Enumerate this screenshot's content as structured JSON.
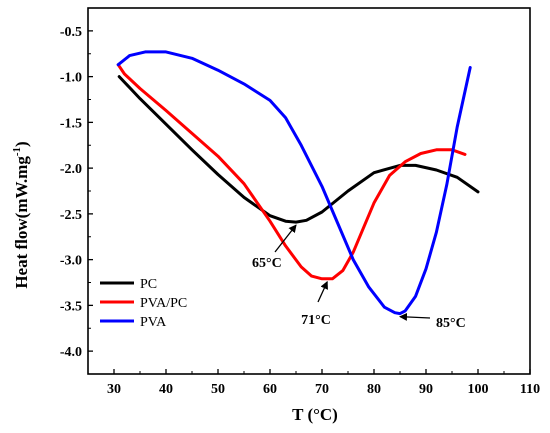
{
  "chart_data": {
    "type": "line",
    "title": "",
    "xlabel": "T  (°C)",
    "ylabel_main": "Heat flow(mW.mg",
    "ylabel_sup": "-1",
    "ylabel_close": ")",
    "xlim": [
      25,
      110
    ],
    "ylim": [
      -4.25,
      -0.25
    ],
    "xticks": [
      30,
      40,
      50,
      60,
      70,
      80,
      90,
      100,
      110
    ],
    "yticks": [
      -0.5,
      -1.0,
      -1.5,
      -2.0,
      -2.5,
      -3.0,
      -3.5,
      -4.0
    ],
    "grid": false,
    "legend_position": "bottom-left",
    "series": [
      {
        "name": "PC",
        "color": "#000000",
        "points": [
          [
            31,
            -1.0
          ],
          [
            35,
            -1.24
          ],
          [
            40,
            -1.52
          ],
          [
            45,
            -1.8
          ],
          [
            50,
            -2.07
          ],
          [
            55,
            -2.32
          ],
          [
            60,
            -2.52
          ],
          [
            63,
            -2.58
          ],
          [
            65,
            -2.59
          ],
          [
            67,
            -2.57
          ],
          [
            70,
            -2.48
          ],
          [
            75,
            -2.25
          ],
          [
            80,
            -2.05
          ],
          [
            85,
            -1.97
          ],
          [
            88,
            -1.97
          ],
          [
            92,
            -2.02
          ],
          [
            96,
            -2.1
          ],
          [
            100,
            -2.26
          ]
        ]
      },
      {
        "name": "PVA/PC",
        "color": "#ff0000",
        "points": [
          [
            30.8,
            -0.87
          ],
          [
            32,
            -0.97
          ],
          [
            35,
            -1.13
          ],
          [
            40,
            -1.37
          ],
          [
            45,
            -1.62
          ],
          [
            50,
            -1.87
          ],
          [
            55,
            -2.17
          ],
          [
            60,
            -2.58
          ],
          [
            63,
            -2.85
          ],
          [
            66,
            -3.08
          ],
          [
            68,
            -3.18
          ],
          [
            70,
            -3.21
          ],
          [
            72,
            -3.21
          ],
          [
            74,
            -3.12
          ],
          [
            76,
            -2.92
          ],
          [
            78,
            -2.65
          ],
          [
            80,
            -2.38
          ],
          [
            83,
            -2.08
          ],
          [
            86,
            -1.93
          ],
          [
            89,
            -1.84
          ],
          [
            92,
            -1.8
          ],
          [
            95,
            -1.8
          ],
          [
            97.5,
            -1.85
          ]
        ]
      },
      {
        "name": "PVA",
        "color": "#0000ff",
        "points": [
          [
            30.8,
            -0.87
          ],
          [
            33,
            -0.77
          ],
          [
            36,
            -0.73
          ],
          [
            40,
            -0.73
          ],
          [
            45,
            -0.8
          ],
          [
            50,
            -0.93
          ],
          [
            55,
            -1.08
          ],
          [
            60,
            -1.26
          ],
          [
            63,
            -1.45
          ],
          [
            66,
            -1.75
          ],
          [
            70,
            -2.2
          ],
          [
            73,
            -2.6
          ],
          [
            76,
            -3.0
          ],
          [
            79,
            -3.3
          ],
          [
            82,
            -3.52
          ],
          [
            84,
            -3.58
          ],
          [
            85,
            -3.59
          ],
          [
            86,
            -3.56
          ],
          [
            88,
            -3.4
          ],
          [
            90,
            -3.1
          ],
          [
            92,
            -2.7
          ],
          [
            94,
            -2.18
          ],
          [
            96,
            -1.55
          ],
          [
            98.5,
            -0.9
          ]
        ]
      }
    ],
    "annotations": [
      {
        "text": "65°C",
        "x": 65,
        "y": -2.59
      },
      {
        "text": "71°C",
        "x": 71,
        "y": -3.21
      },
      {
        "text": "85°C",
        "x": 85,
        "y": -3.59
      }
    ]
  }
}
